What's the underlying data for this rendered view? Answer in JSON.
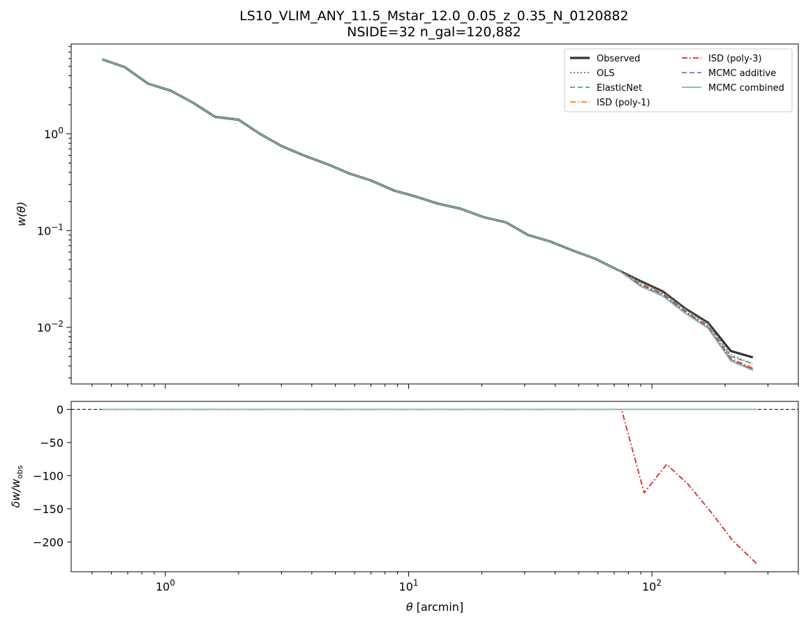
{
  "chart_data": [
    {
      "type": "line",
      "title": [
        "LS10_VLIM_ANY_11.5_Mstar_12.0_0.05_z_0.35_N_0120882",
        "NSIDE=32  n_gal=120,882"
      ],
      "xlabel": "",
      "ylabel_latex": "w(θ)",
      "xscale": "log",
      "yscale": "log",
      "xlim": [
        0.41,
        400
      ],
      "ylim": [
        0.0026,
        8.5
      ],
      "xticks": [
        1,
        10,
        100
      ],
      "xtick_labels": [
        "",
        "",
        ""
      ],
      "yticks": [
        0.01,
        0.1,
        1
      ],
      "ytick_labels": [
        {
          "base": "10",
          "exp": "−2"
        },
        {
          "base": "10",
          "exp": "−1"
        },
        {
          "base": "10",
          "exp": "0"
        }
      ],
      "grid": false,
      "legend": {
        "placement": "upper right",
        "columns": 2,
        "entries": [
          "Observed",
          "OLS",
          "ElasticNet",
          "ISD (poly-1)",
          "ISD (poly-3)",
          "MCMC additive",
          "MCMC combined"
        ]
      },
      "x": [
        0.55,
        0.68,
        0.85,
        1.05,
        1.3,
        1.6,
        2.0,
        2.45,
        3.0,
        3.7,
        4.6,
        5.7,
        7.0,
        8.7,
        10.7,
        13.2,
        16.4,
        20.3,
        25.1,
        31.0,
        38.4,
        47.5,
        58.8,
        72.7,
        90.0,
        111.0,
        138.0,
        170.0,
        211.0,
        260.0
      ],
      "series": [
        {
          "name": "Observed",
          "color": "#333333",
          "style": "solid",
          "values": [
            5.9,
            4.9,
            3.3,
            2.8,
            2.1,
            1.5,
            1.4,
            1.0,
            0.75,
            0.6,
            0.49,
            0.39,
            0.33,
            0.26,
            0.225,
            0.19,
            0.168,
            0.138,
            0.122,
            0.09,
            0.077,
            0.062,
            0.051,
            0.039,
            0.03,
            0.0235,
            0.0155,
            0.0112,
            0.0057,
            0.0049
          ]
        },
        {
          "name": "OLS",
          "color": "#4c72b0",
          "style": "dotted",
          "values": [
            5.9,
            4.9,
            3.3,
            2.8,
            2.1,
            1.5,
            1.4,
            1.0,
            0.75,
            0.6,
            0.49,
            0.39,
            0.33,
            0.26,
            0.225,
            0.19,
            0.168,
            0.138,
            0.122,
            0.09,
            0.077,
            0.062,
            0.051,
            0.039,
            0.0295,
            0.023,
            0.0152,
            0.011,
            0.0052,
            0.0042
          ]
        },
        {
          "name": "ElasticNet",
          "color": "#55a868",
          "style": "dashed",
          "values": [
            5.9,
            4.9,
            3.3,
            2.8,
            2.1,
            1.5,
            1.4,
            1.0,
            0.75,
            0.6,
            0.49,
            0.39,
            0.33,
            0.26,
            0.225,
            0.19,
            0.168,
            0.138,
            0.122,
            0.09,
            0.077,
            0.062,
            0.051,
            0.039,
            0.029,
            0.0228,
            0.015,
            0.0108,
            0.005,
            0.0042
          ]
        },
        {
          "name": "ISD (poly-1)",
          "color": "#ff7f0e",
          "style": "dashdot",
          "values": [
            5.9,
            4.9,
            3.3,
            2.8,
            2.1,
            1.5,
            1.4,
            1.0,
            0.75,
            0.6,
            0.49,
            0.39,
            0.33,
            0.26,
            0.225,
            0.19,
            0.168,
            0.138,
            0.122,
            0.09,
            0.077,
            0.062,
            0.051,
            0.039,
            0.028,
            0.0222,
            0.0145,
            0.0104,
            0.0048,
            0.0038
          ]
        },
        {
          "name": "ISD (poly-3)",
          "color": "#d62728",
          "style": "dashdot",
          "values": [
            5.9,
            4.9,
            3.3,
            2.8,
            2.1,
            1.5,
            1.4,
            1.0,
            0.75,
            0.6,
            0.49,
            0.39,
            0.33,
            0.26,
            0.225,
            0.19,
            0.168,
            0.138,
            0.122,
            0.09,
            0.077,
            0.062,
            0.051,
            0.039,
            0.0275,
            0.022,
            0.0143,
            0.0102,
            0.0047,
            0.0037
          ]
        },
        {
          "name": "MCMC additive",
          "color": "#9467bd",
          "style": "dashed",
          "values": [
            5.9,
            4.9,
            3.3,
            2.8,
            2.1,
            1.5,
            1.4,
            1.0,
            0.75,
            0.6,
            0.49,
            0.39,
            0.33,
            0.26,
            0.225,
            0.19,
            0.168,
            0.138,
            0.122,
            0.09,
            0.077,
            0.062,
            0.051,
            0.039,
            0.027,
            0.0215,
            0.0141,
            0.01,
            0.0046,
            0.0037
          ]
        },
        {
          "name": "MCMC combined",
          "color": "#76b7b2",
          "style": "solid",
          "values": [
            5.9,
            4.9,
            3.3,
            2.8,
            2.1,
            1.5,
            1.4,
            1.0,
            0.75,
            0.6,
            0.49,
            0.39,
            0.33,
            0.26,
            0.225,
            0.19,
            0.168,
            0.138,
            0.122,
            0.09,
            0.077,
            0.062,
            0.051,
            0.039,
            0.0265,
            0.021,
            0.0138,
            0.0098,
            0.0045,
            0.0036
          ]
        }
      ]
    },
    {
      "type": "line",
      "xlabel": "θ [arcmin]",
      "ylabel_latex": "δw/w_obs",
      "xscale": "log",
      "yscale": "linear",
      "xlim": [
        0.41,
        400
      ],
      "ylim": [
        -245,
        12
      ],
      "xticks": [
        1,
        10,
        100
      ],
      "xtick_labels": [
        {
          "base": "10",
          "exp": "0"
        },
        {
          "base": "10",
          "exp": "1"
        },
        {
          "base": "10",
          "exp": "2"
        }
      ],
      "yticks": [
        0,
        -50,
        -100,
        -150,
        -200
      ],
      "ytick_labels": [
        "0",
        "−50",
        "−100",
        "−150",
        "−200"
      ],
      "reference_line": {
        "y": 0,
        "color": "#000000",
        "style": "dashed"
      },
      "grid": false,
      "series": [
        {
          "name": "ISD (poly-3)",
          "color": "#d62728",
          "style": "dashdot",
          "x": [
            0.55,
            72.7,
            75.0,
            93.0,
            115.0,
            140.0,
            175.0,
            215.0,
            270.0
          ],
          "values": [
            0,
            0,
            0,
            -126,
            -83,
            -112,
            -155,
            -198,
            -233
          ]
        },
        {
          "name": "MCMC combined",
          "color": "#76b7b2",
          "style": "solid",
          "x": [
            0.55,
            270.0
          ],
          "values": [
            0,
            0
          ]
        }
      ]
    }
  ]
}
